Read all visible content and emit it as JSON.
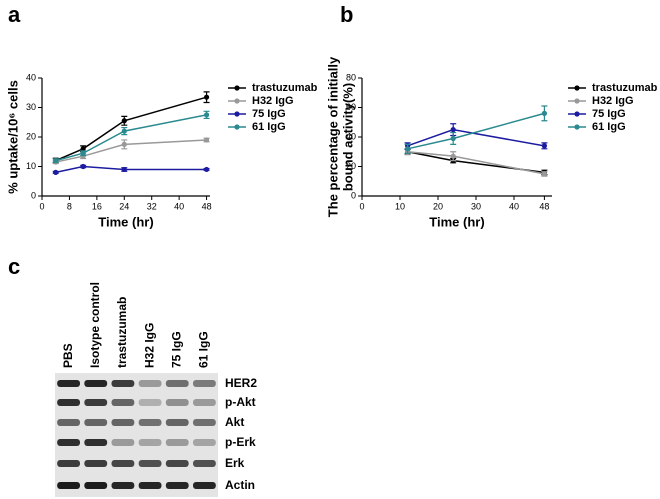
{
  "chart_data": [
    {
      "type": "line",
      "panel_label": "a",
      "xlabel": "Time (hr)",
      "ylabel": "% uptake/10⁶ cells",
      "x": [
        4,
        12,
        24,
        48
      ],
      "xlim": [
        0,
        49
      ],
      "xticks": [
        0,
        8,
        16,
        24,
        32,
        40,
        48
      ],
      "ylim": [
        0,
        40
      ],
      "yticks": [
        0,
        10,
        20,
        30,
        40
      ],
      "series": [
        {
          "name": "trastuzumab",
          "color": "#000000",
          "values": [
            12,
            16,
            25.5,
            33.5
          ],
          "errors": [
            0.8,
            1,
            1.5,
            1.8
          ]
        },
        {
          "name": "H32 IgG",
          "color": "#999999",
          "values": [
            11.5,
            13.5,
            17.5,
            19
          ],
          "errors": [
            0.5,
            0.8,
            1.5,
            0.6
          ]
        },
        {
          "name": "75 IgG",
          "color": "#1c1ca0",
          "values": [
            8,
            10,
            9,
            9
          ],
          "errors": [
            0.3,
            0.4,
            0.6,
            0.3
          ]
        },
        {
          "name": "61 IgG",
          "color": "#2a8a8f",
          "values": [
            12,
            14.5,
            22,
            27.5
          ],
          "errors": [
            0.6,
            0.8,
            1.2,
            1.2
          ]
        }
      ]
    },
    {
      "type": "line",
      "panel_label": "b",
      "xlabel": "Time (hr)",
      "ylabel": [
        "The percentage of initially",
        "bound activity(%)"
      ],
      "x": [
        12,
        24,
        48
      ],
      "xlim": [
        0,
        50
      ],
      "xticks": [
        0,
        10,
        20,
        30,
        40,
        48
      ],
      "ylim": [
        0,
        80
      ],
      "yticks": [
        0,
        20,
        40,
        60,
        80
      ],
      "series": [
        {
          "name": "trastuzumab",
          "color": "#000000",
          "values": [
            30,
            24,
            16
          ],
          "errors": [
            1.5,
            1.5,
            1.5
          ]
        },
        {
          "name": "H32 IgG",
          "color": "#999999",
          "values": [
            30,
            27,
            15
          ],
          "errors": [
            2,
            3,
            1.5
          ]
        },
        {
          "name": "75 IgG",
          "color": "#1c1ca0",
          "values": [
            34,
            45,
            34
          ],
          "errors": [
            2,
            4,
            2
          ]
        },
        {
          "name": "61 IgG",
          "color": "#2a8a8f",
          "values": [
            32,
            39,
            56
          ],
          "errors": [
            3,
            4,
            5
          ]
        }
      ]
    }
  ],
  "blot": {
    "panel_label": "c",
    "lanes": [
      "PBS",
      "Isotype control",
      "trastuzumab",
      "H32 IgG",
      "75  IgG",
      "61 IgG"
    ],
    "bands": [
      "HER2",
      "p-Akt",
      "Akt",
      "p-Erk",
      "Erk",
      "Actin"
    ]
  }
}
